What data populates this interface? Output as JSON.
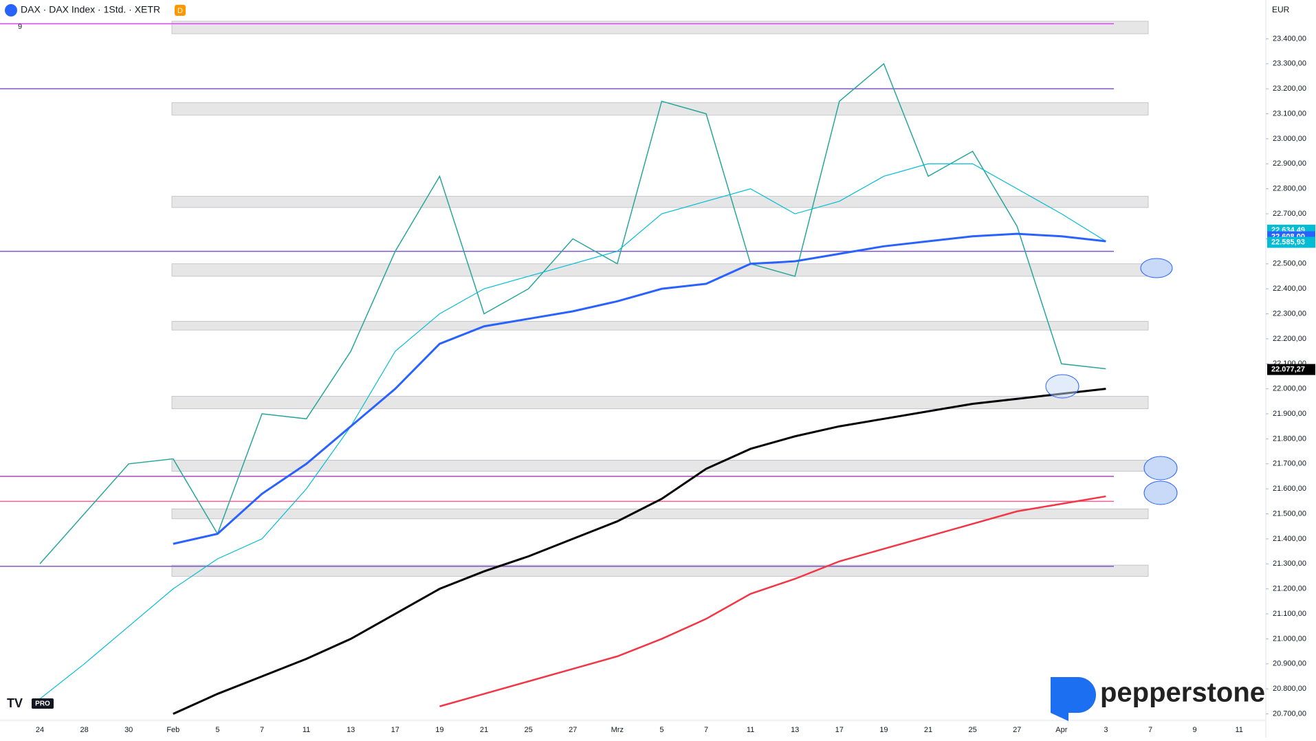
{
  "header": {
    "symbol": "DAX · DAX Index · 1Std. · XETR",
    "badge": "D",
    "counter": "9",
    "currency": "EUR",
    "brand": "pepperstone",
    "tv": "PRO"
  },
  "chart_data": {
    "type": "line",
    "ylim": [
      20674,
      23555
    ],
    "yticks": [
      {
        "value": 20700,
        "label": "20.700,00"
      },
      {
        "value": 20800,
        "label": "20.800,00"
      },
      {
        "value": 20900,
        "label": "20.900,00"
      },
      {
        "value": 21000,
        "label": "21.000,00"
      },
      {
        "value": 21100,
        "label": "21.100,00"
      },
      {
        "value": 21200,
        "label": "21.200,00"
      },
      {
        "value": 21300,
        "label": "21.300,00"
      },
      {
        "value": 21400,
        "label": "21.400,00"
      },
      {
        "value": 21500,
        "label": "21.500,00"
      },
      {
        "value": 21600,
        "label": "21.600,00"
      },
      {
        "value": 21700,
        "label": "21.700,00"
      },
      {
        "value": 21800,
        "label": "21.800,00"
      },
      {
        "value": 21900,
        "label": "21.900,00"
      },
      {
        "value": 22000,
        "label": "22.000,00"
      },
      {
        "value": 22100,
        "label": "22.100,00"
      },
      {
        "value": 22200,
        "label": "22.200,00"
      },
      {
        "value": 22300,
        "label": "22.300,00"
      },
      {
        "value": 22400,
        "label": "22.400,00"
      },
      {
        "value": 22500,
        "label": "22.500,00"
      },
      {
        "value": 22600,
        "label": "22.600,00"
      },
      {
        "value": 22700,
        "label": "22.700,00"
      },
      {
        "value": 22800,
        "label": "22.800,00"
      },
      {
        "value": 22900,
        "label": "22.900,00"
      },
      {
        "value": 23000,
        "label": "23.000,00"
      },
      {
        "value": 23100,
        "label": "23.100,00"
      },
      {
        "value": 23200,
        "label": "23.200,00"
      },
      {
        "value": 23300,
        "label": "23.300,00"
      },
      {
        "value": 23400,
        "label": "23.400,00"
      }
    ],
    "categories": [
      "24",
      "28",
      "30",
      "Feb",
      "5",
      "7",
      "11",
      "13",
      "17",
      "19",
      "21",
      "25",
      "27",
      "Mrz",
      "5",
      "7",
      "11",
      "13",
      "17",
      "19",
      "21",
      "25",
      "27",
      "Apr",
      "3",
      "7",
      "9",
      "11"
    ],
    "series": [
      {
        "color": "#26a69a",
        "values": [
          21300,
          21500,
          21700,
          21720,
          21420,
          21900,
          21880,
          22150,
          22550,
          22850,
          22300,
          22400,
          22600,
          22500,
          23150,
          23100,
          22500,
          22450,
          23150,
          23300,
          22850,
          22950,
          22650,
          22100,
          22080,
          null,
          null,
          null
        ]
      },
      {
        "color": "#00bcd4",
        "values": [
          20760,
          20900,
          21050,
          21200,
          21320,
          21400,
          21600,
          21850,
          22150,
          22300,
          22400,
          22450,
          22500,
          22550,
          22700,
          22750,
          22800,
          22700,
          22750,
          22850,
          22900,
          22900,
          22800,
          22700,
          22590,
          null,
          null,
          null
        ]
      },
      {
        "color": "#2962ff",
        "values": [
          null,
          null,
          null,
          21380,
          21420,
          21580,
          21700,
          21850,
          22000,
          22180,
          22250,
          22280,
          22310,
          22350,
          22400,
          22420,
          22500,
          22510,
          22540,
          22570,
          22590,
          22610,
          22620,
          22610,
          22590,
          null,
          null,
          null
        ]
      },
      {
        "color": "#000000",
        "values": [
          null,
          null,
          null,
          20700,
          20780,
          20850,
          20920,
          21000,
          21100,
          21200,
          21270,
          21330,
          21400,
          21470,
          21560,
          21680,
          21760,
          21810,
          21850,
          21880,
          21910,
          21940,
          21960,
          21980,
          22000,
          null,
          null,
          null
        ]
      },
      {
        "color": "#f23645",
        "values": [
          null,
          null,
          null,
          null,
          null,
          null,
          null,
          null,
          null,
          20730,
          20780,
          20830,
          20880,
          20930,
          21000,
          21080,
          21180,
          21240,
          21310,
          21360,
          21410,
          21460,
          21510,
          21540,
          21570,
          null,
          null,
          null
        ]
      }
    ],
    "zones": [
      [
        23420,
        23470
      ],
      [
        23095,
        23145
      ],
      [
        22725,
        22770
      ],
      [
        22450,
        22500
      ],
      [
        22235,
        22270
      ],
      [
        21920,
        21970
      ],
      [
        21670,
        21715
      ],
      [
        21480,
        21520
      ],
      [
        21250,
        21295
      ]
    ],
    "levels": [
      {
        "value": 23460,
        "color": "#e040fb"
      },
      {
        "value": 23200,
        "color": "#7e57c2"
      },
      {
        "value": 22550,
        "color": "#7e57c2"
      },
      {
        "value": 21650,
        "color": "#ab47bc"
      },
      {
        "value": 21550,
        "color": "#f06292"
      },
      {
        "value": 21290,
        "color": "#7e57c2"
      }
    ],
    "price_tags": [
      {
        "value": 22634.49,
        "label": "22.634,49",
        "color": "#00bcd4"
      },
      {
        "value": 22608,
        "label": "22.608,00",
        "color": "#2962ff"
      },
      {
        "value": 22585.93,
        "label": "22.585,93",
        "color": "#00bcd4"
      },
      {
        "value": 22077.27,
        "label": "22.077,27",
        "color": "#000000"
      }
    ],
    "grid": false
  }
}
